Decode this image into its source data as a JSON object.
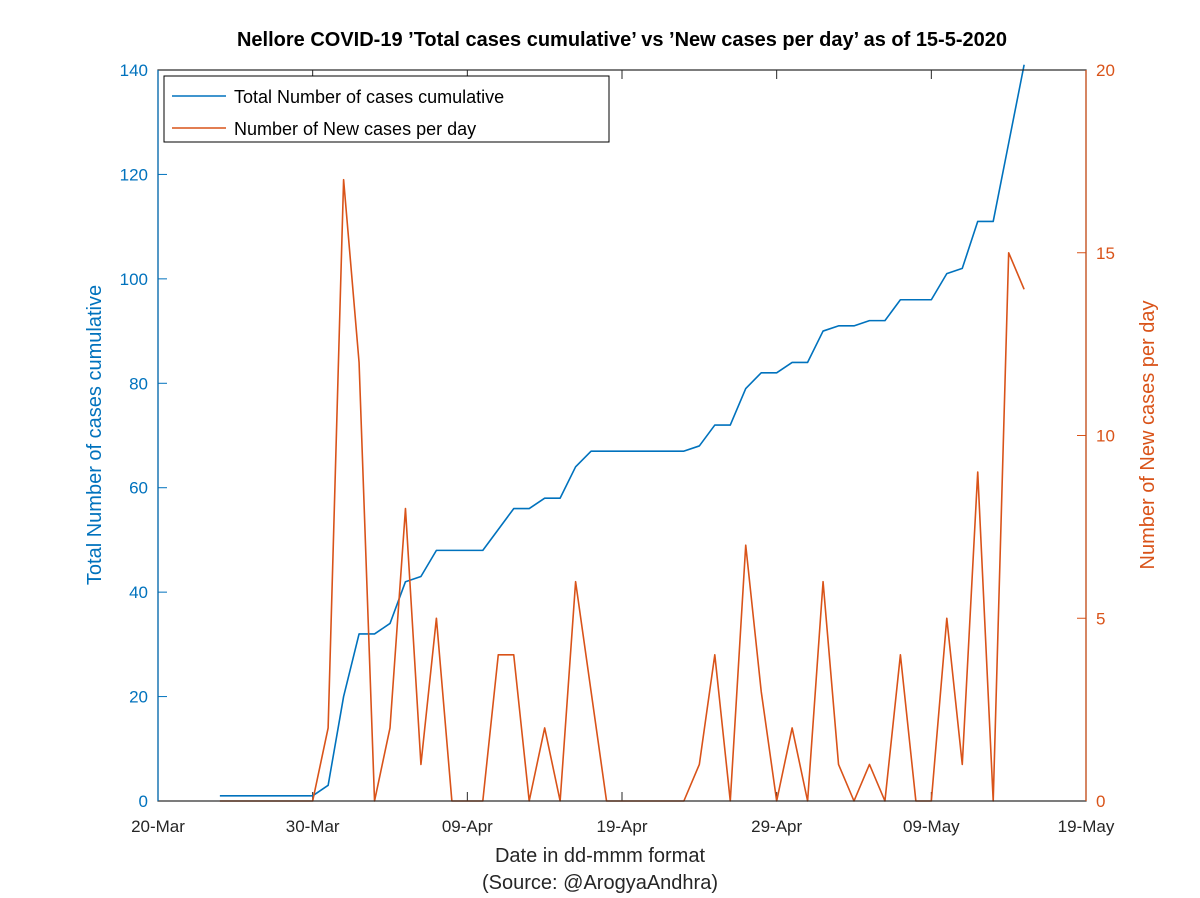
{
  "chart_data": {
    "type": "line",
    "title": "Nellore COVID-19 ’Total cases cumulative’ vs ’New cases per day’ as of 15-5-2020",
    "xlabel": "Date in dd-mmm format",
    "xlabel_source": "(Source: @ArogyaAndhra)",
    "ylabel_left": "Total Number of cases cumulative",
    "ylabel_right": "Number of New cases per day",
    "x_ticks": [
      "20-Mar",
      "30-Mar",
      "09-Apr",
      "19-Apr",
      "29-Apr",
      "09-May",
      "19-May"
    ],
    "x_range": [
      "2020-03-20",
      "2020-05-19"
    ],
    "ylim_left": [
      0,
      140
    ],
    "yticks_left": [
      0,
      20,
      40,
      60,
      80,
      100,
      120,
      140
    ],
    "ylim_right": [
      0,
      20
    ],
    "yticks_right": [
      0,
      5,
      10,
      15,
      20
    ],
    "legend_position": "top-left",
    "grid": false,
    "colors": {
      "left_axis": "#0072BD",
      "right_axis": "#D95319",
      "cumulative_line": "#0072BD",
      "new_cases_line": "#D95319"
    },
    "x": [
      "2020-03-24",
      "2020-03-25",
      "2020-03-26",
      "2020-03-27",
      "2020-03-28",
      "2020-03-29",
      "2020-03-30",
      "2020-03-31",
      "2020-04-01",
      "2020-04-02",
      "2020-04-03",
      "2020-04-04",
      "2020-04-05",
      "2020-04-06",
      "2020-04-07",
      "2020-04-08",
      "2020-04-09",
      "2020-04-10",
      "2020-04-11",
      "2020-04-12",
      "2020-04-13",
      "2020-04-14",
      "2020-04-15",
      "2020-04-16",
      "2020-04-17",
      "2020-04-18",
      "2020-04-19",
      "2020-04-20",
      "2020-04-21",
      "2020-04-22",
      "2020-04-23",
      "2020-04-24",
      "2020-04-25",
      "2020-04-26",
      "2020-04-27",
      "2020-04-28",
      "2020-04-29",
      "2020-04-30",
      "2020-05-01",
      "2020-05-02",
      "2020-05-03",
      "2020-05-04",
      "2020-05-05",
      "2020-05-06",
      "2020-05-07",
      "2020-05-08",
      "2020-05-09",
      "2020-05-10",
      "2020-05-11",
      "2020-05-12",
      "2020-05-13",
      "2020-05-14",
      "2020-05-15"
    ],
    "series": [
      {
        "name": "Total Number of cases cumulative",
        "axis": "left",
        "values": [
          1,
          1,
          1,
          1,
          1,
          1,
          1,
          3,
          20,
          32,
          32,
          34,
          42,
          43,
          48,
          48,
          48,
          48,
          52,
          56,
          56,
          58,
          58,
          64,
          67,
          67,
          67,
          67,
          67,
          67,
          67,
          68,
          72,
          72,
          79,
          82,
          82,
          84,
          84,
          90,
          91,
          91,
          92,
          92,
          96,
          96,
          96,
          101,
          102,
          111,
          111,
          126,
          141
        ]
      },
      {
        "name": "Number of New cases per day",
        "axis": "right",
        "values": [
          0,
          0,
          0,
          0,
          0,
          0,
          0,
          2,
          17,
          12,
          0,
          2,
          8,
          1,
          5,
          0,
          0,
          0,
          4,
          4,
          0,
          2,
          0,
          6,
          3,
          0,
          0,
          0,
          0,
          0,
          0,
          1,
          4,
          0,
          7,
          3,
          0,
          2,
          0,
          6,
          1,
          0,
          1,
          0,
          4,
          0,
          0,
          5,
          1,
          9,
          0,
          15,
          14
        ]
      }
    ]
  }
}
